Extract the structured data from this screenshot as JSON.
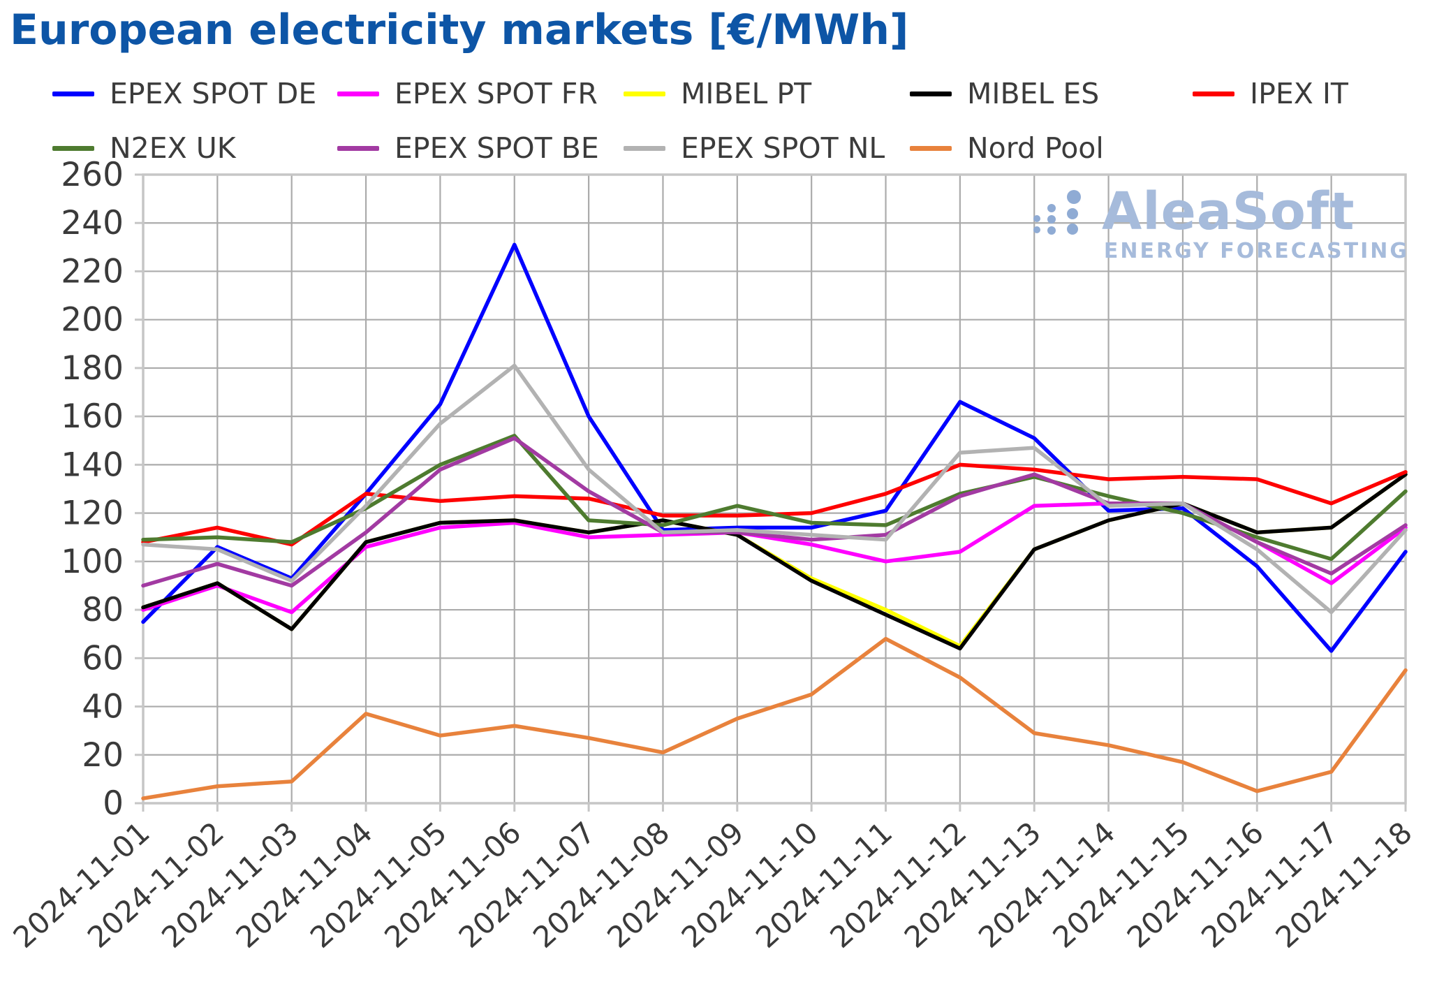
{
  "title": "European electricity markets [€/MWh]",
  "watermark": {
    "brand": "AleaSoft",
    "tagline": "ENERGY FORECASTING"
  },
  "chart_data": {
    "type": "line",
    "title": "European electricity markets [€/MWh]",
    "xlabel": "",
    "ylabel": "",
    "ylim": [
      0,
      260
    ],
    "ytick_step": 20,
    "grid": true,
    "legend_position": "top",
    "x": [
      "2024-11-01",
      "2024-11-02",
      "2024-11-03",
      "2024-11-04",
      "2024-11-05",
      "2024-11-06",
      "2024-11-07",
      "2024-11-08",
      "2024-11-09",
      "2024-11-10",
      "2024-11-11",
      "2024-11-12",
      "2024-11-13",
      "2024-11-14",
      "2024-11-15",
      "2024-11-16",
      "2024-11-17",
      "2024-11-18"
    ],
    "series": [
      {
        "name": "EPEX SPOT DE",
        "color": "#0000ff",
        "values": [
          75,
          106,
          93,
          128,
          165,
          231,
          160,
          113,
          114,
          114,
          121,
          166,
          151,
          121,
          122,
          98,
          63,
          104
        ]
      },
      {
        "name": "EPEX SPOT FR",
        "color": "#ff00ff",
        "values": [
          80,
          90,
          79,
          106,
          114,
          116,
          110,
          111,
          112,
          107,
          100,
          104,
          123,
          124,
          124,
          108,
          91,
          114
        ]
      },
      {
        "name": "MIBEL PT",
        "color": "#ffff00",
        "values": [
          81,
          91,
          72,
          108,
          116,
          117,
          112,
          117,
          111,
          93,
          80,
          65,
          105,
          117,
          124,
          112,
          114,
          136
        ]
      },
      {
        "name": "MIBEL ES",
        "color": "#000000",
        "values": [
          81,
          91,
          72,
          108,
          116,
          117,
          112,
          117,
          111,
          92,
          78,
          64,
          105,
          117,
          124,
          112,
          114,
          136
        ]
      },
      {
        "name": "IPEX IT",
        "color": "#fe0000",
        "values": [
          108,
          114,
          107,
          128,
          125,
          127,
          126,
          119,
          119,
          120,
          128,
          140,
          138,
          134,
          135,
          134,
          124,
          137
        ]
      },
      {
        "name": "N2EX UK",
        "color": "#4e7b2f",
        "values": [
          109,
          110,
          108,
          122,
          140,
          152,
          117,
          115,
          123,
          116,
          115,
          128,
          135,
          127,
          120,
          110,
          101,
          129
        ]
      },
      {
        "name": "EPEX SPOT BE",
        "color": "#a23aa2",
        "values": [
          90,
          99,
          90,
          112,
          138,
          151,
          129,
          112,
          112,
          109,
          111,
          127,
          136,
          124,
          124,
          108,
          95,
          115
        ]
      },
      {
        "name": "EPEX SPOT NL",
        "color": "#b2b2b2",
        "values": [
          107,
          105,
          92,
          123,
          157,
          181,
          138,
          112,
          113,
          111,
          109,
          145,
          147,
          123,
          124,
          105,
          79,
          113
        ]
      },
      {
        "name": "Nord Pool",
        "color": "#e8823c",
        "values": [
          2,
          7,
          9,
          37,
          28,
          32,
          27,
          21,
          35,
          45,
          68,
          52,
          29,
          24,
          17,
          5,
          13,
          55
        ]
      }
    ]
  }
}
